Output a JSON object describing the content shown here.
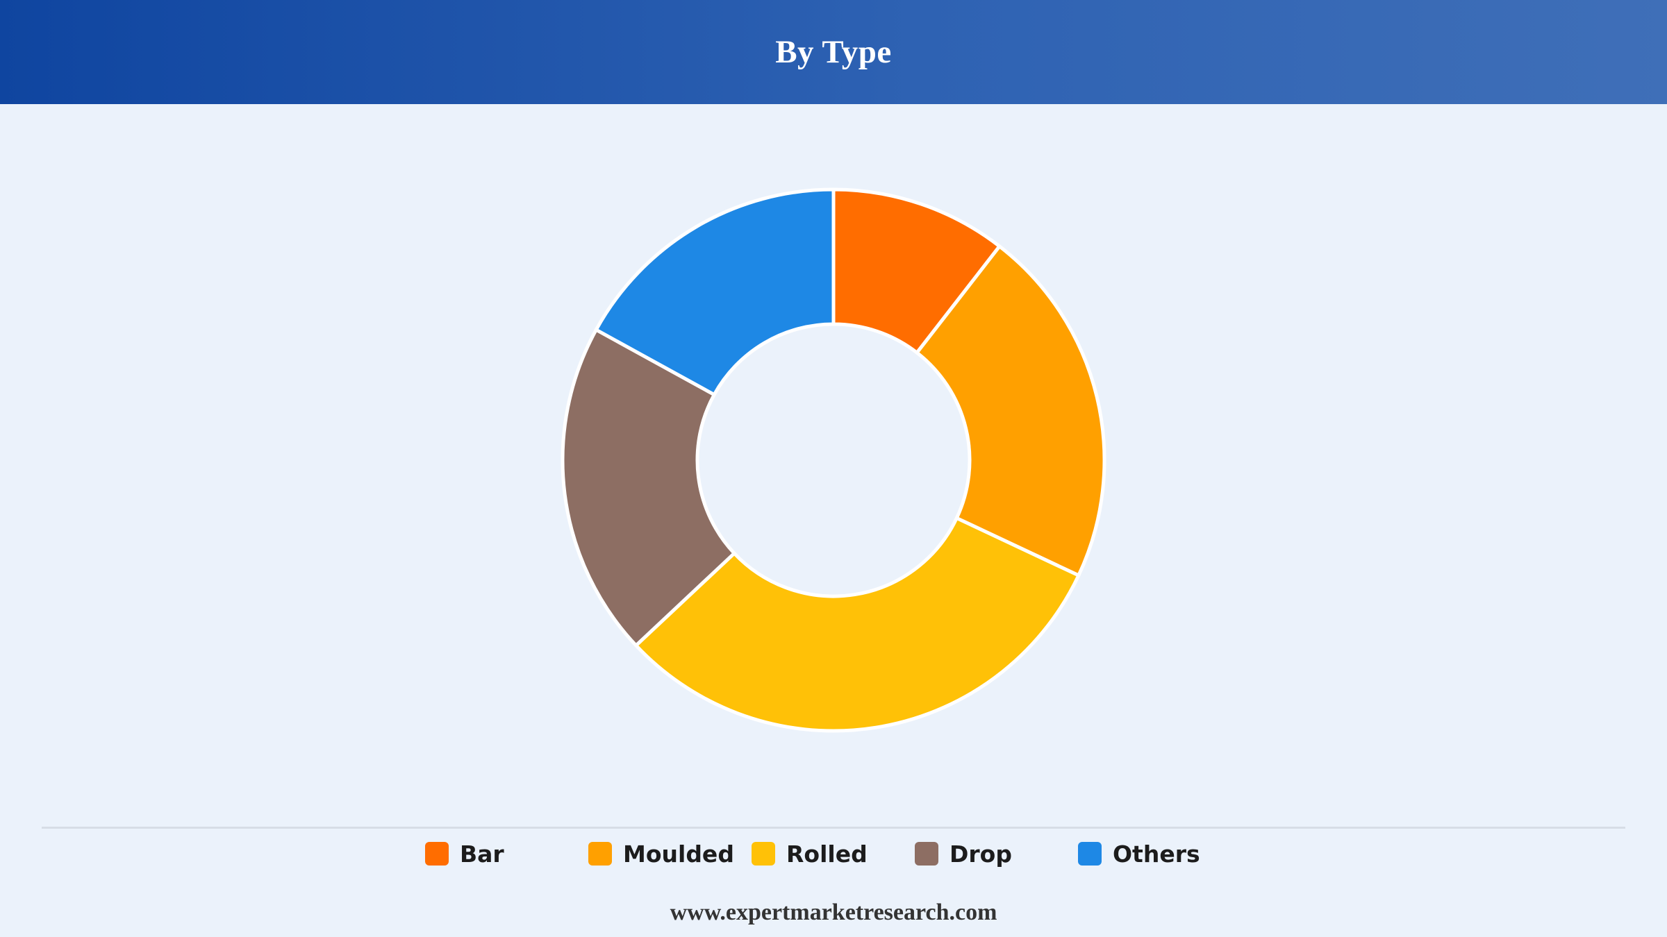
{
  "header": {
    "title": "By Type"
  },
  "chart_data": {
    "type": "pie",
    "donut": true,
    "title": "By Type",
    "categories": [
      "Bar",
      "Moulded",
      "Rolled",
      "Drop",
      "Others"
    ],
    "values": [
      10.5,
      21.5,
      31.0,
      20.0,
      17.0
    ],
    "unit": "%",
    "colors": [
      "#ff6d00",
      "#ffa000",
      "#ffc107",
      "#8d6e63",
      "#1e88e5"
    ],
    "legend_position": "bottom",
    "start_angle": "12 o'clock, clockwise"
  },
  "legend": {
    "items": [
      {
        "label": "Bar",
        "color": "#ff6d00"
      },
      {
        "label": "Moulded",
        "color": "#ffa000"
      },
      {
        "label": "Rolled",
        "color": "#ffc107"
      },
      {
        "label": "Drop",
        "color": "#8d6e63"
      },
      {
        "label": "Others",
        "color": "#1e88e5"
      }
    ]
  },
  "footer": {
    "source": "www.expertmarketresearch.com"
  }
}
